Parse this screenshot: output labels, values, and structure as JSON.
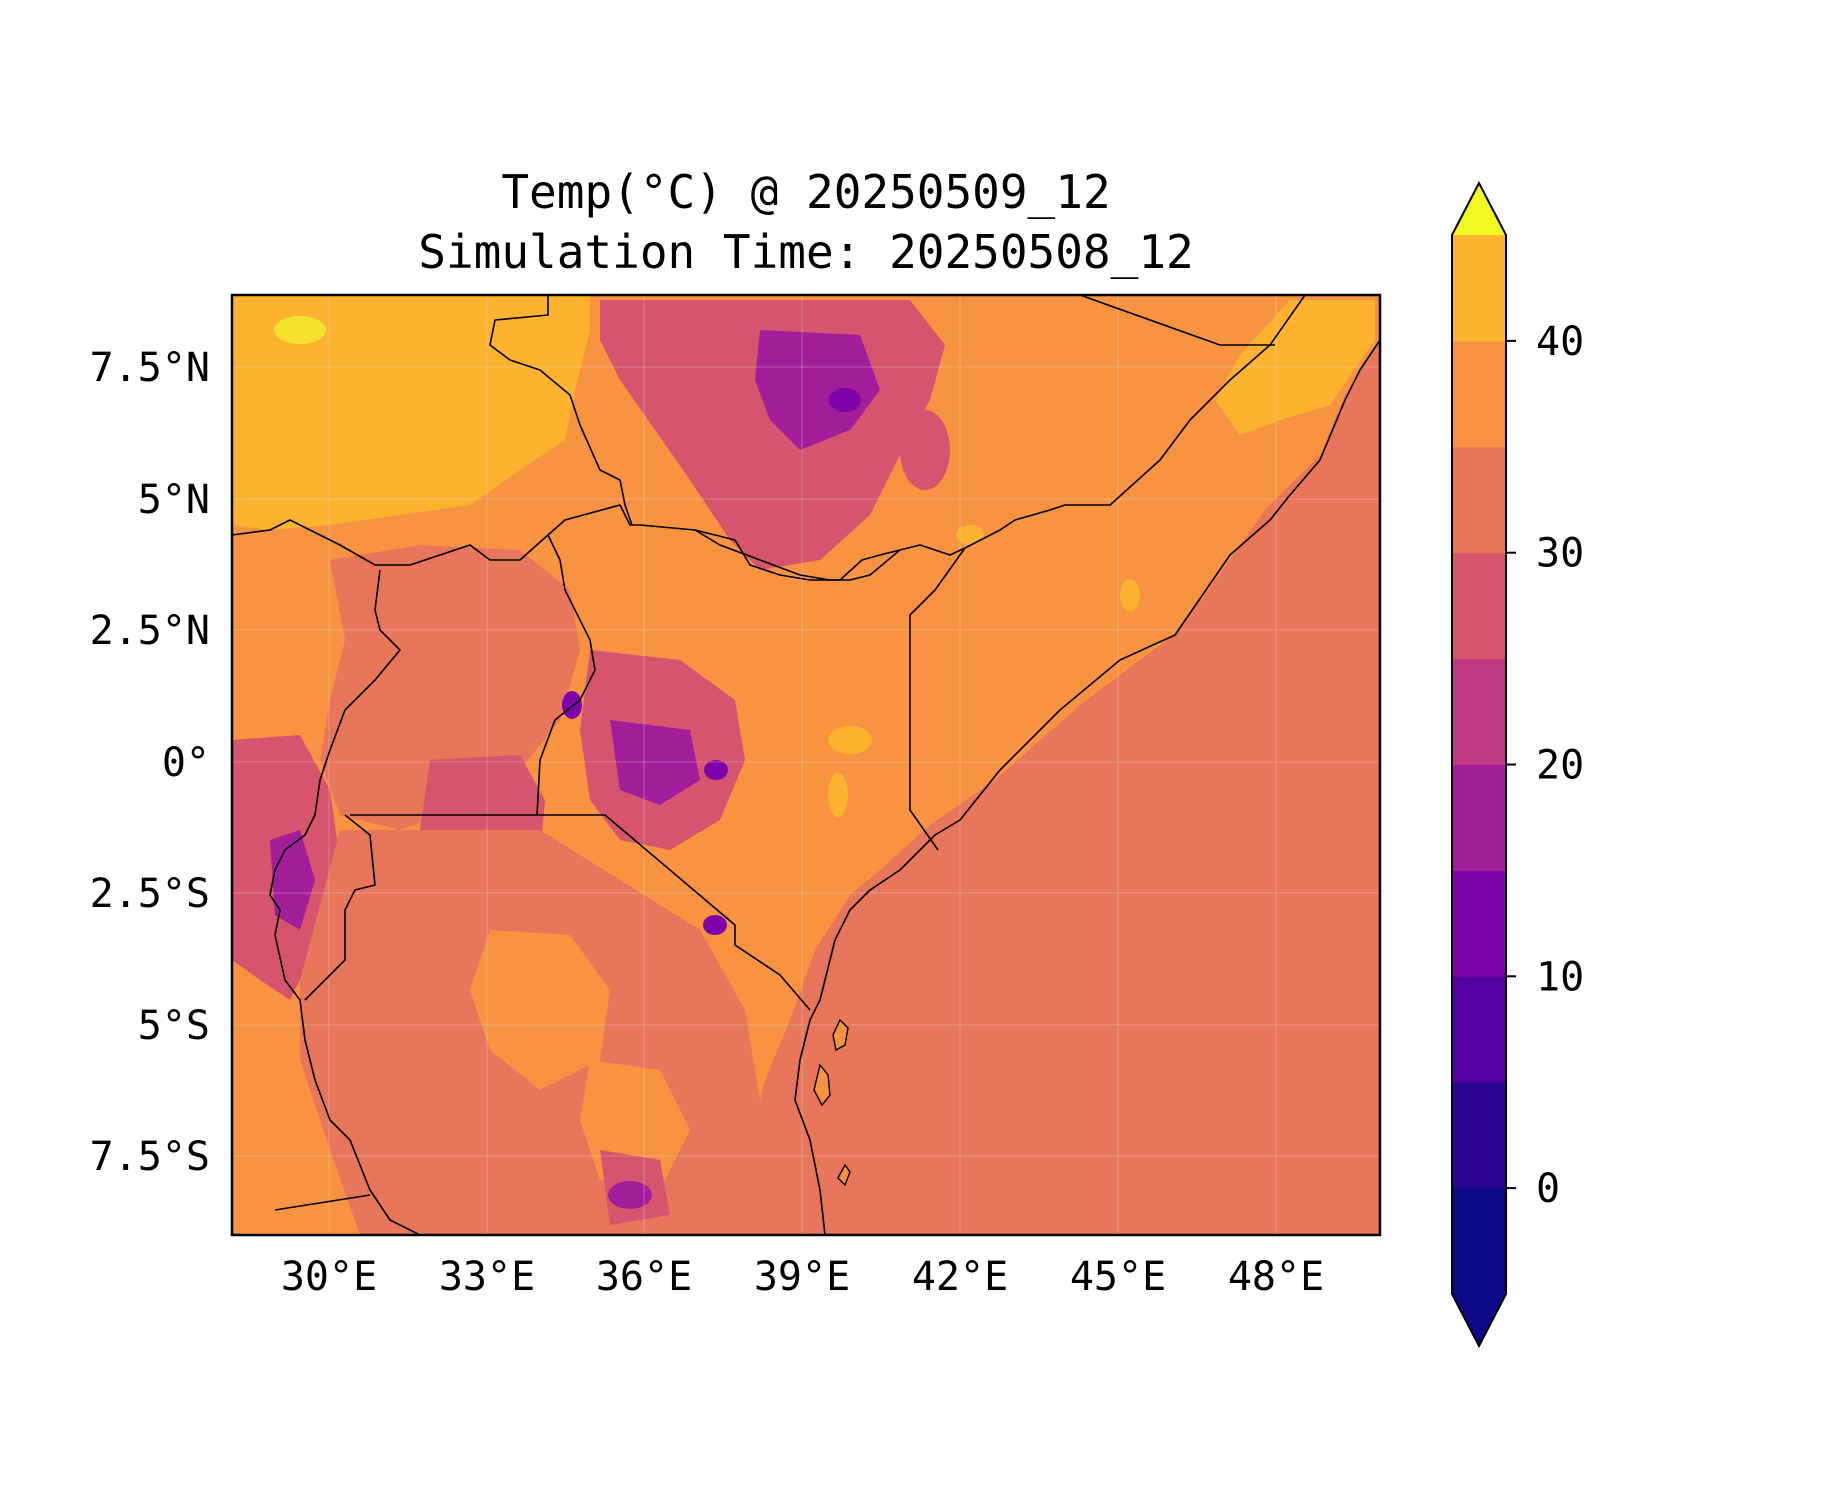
{
  "title": {
    "line1": "Temp(°C) @ 20250509_12",
    "line2": "Simulation Time: 20250508_12"
  },
  "map": {
    "lon_range": [
      28.0,
      49.5
    ],
    "lat_range": [
      -9.0,
      9.0
    ],
    "x_ticks": [
      "30°E",
      "33°E",
      "36°E",
      "39°E",
      "42°E",
      "45°E",
      "48°E"
    ],
    "y_ticks": [
      "7.5°N",
      "5°N",
      "2.5°N",
      "0°",
      "2.5°S",
      "5°S",
      "7.5°S"
    ],
    "gridlines": true,
    "borders": "country boundaries and coastline (black)"
  },
  "colorbar": {
    "ticks": [
      "0",
      "10",
      "20",
      "30",
      "40"
    ],
    "levels": [
      -5,
      0,
      5,
      10,
      15,
      20,
      25,
      30,
      35,
      40,
      45
    ],
    "extend": "both",
    "colors": [
      "#0d0887",
      "#2a0593",
      "#5402a3",
      "#7e03a8",
      "#a21d9a",
      "#c03a83",
      "#d6546e",
      "#e8765a",
      "#f89441",
      "#fdb32f",
      "#f4e12b"
    ],
    "extend_low_color": "#0d0887",
    "extend_high_color": "#f0f921"
  },
  "field_colors": {
    "ocean": "#e8765a",
    "hot_north": "#fdb32f",
    "lowland": "#f89441",
    "highland": "#d6546e",
    "mountain": "#a21d9a",
    "peak": "#7e03a8",
    "hottest": "#f4e12b"
  }
}
